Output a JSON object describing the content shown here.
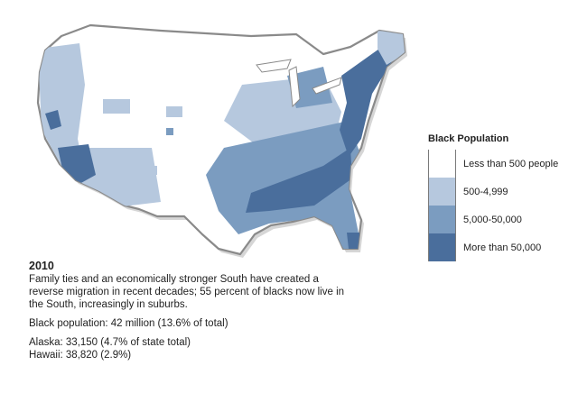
{
  "legend": {
    "title": "Black Population",
    "items": [
      {
        "label": "Less than 500 people",
        "color": "#ffffff"
      },
      {
        "label": "500-4,999",
        "color": "#b6c8de"
      },
      {
        "label": "5,000-50,000",
        "color": "#7b9cc0"
      },
      {
        "label": "More than 50,000",
        "color": "#4a6e9c"
      }
    ]
  },
  "caption": {
    "year": "2010",
    "description": "Family ties and an economically stronger South have created a reverse migration in recent decades; 55 percent of blacks now live in the South, increasingly in suburbs.",
    "total": "Black population: 42 million (13.6% of total)",
    "alaska": "Alaska: 33,150 (4.7% of state total)",
    "hawaii": "Hawaii: 38,820 (2.9%)"
  },
  "map": {
    "outline_color": "#8a8a8a",
    "region_levels": {
      "west_coast": "500-4,999",
      "southern_california": "More than 50,000",
      "southeast": "5,000-50,000",
      "northeast_corridor": "More than 50,000",
      "great_plains": "Less than 500 people"
    }
  }
}
